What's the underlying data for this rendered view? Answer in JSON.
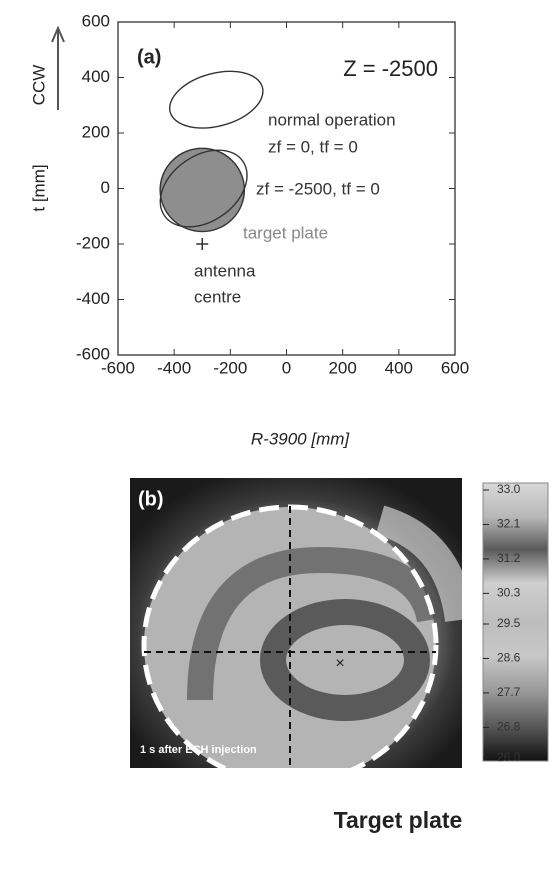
{
  "chart_data": [
    {
      "type": "ellipse",
      "panel_label": "(a)",
      "xlabel": "R-3900 [mm]",
      "ylabel": "t [mm]",
      "direction_label": "CCW",
      "xlim": [
        -600,
        600
      ],
      "ylim": [
        -600,
        600
      ],
      "xticks": [
        -600,
        -400,
        -200,
        0,
        200,
        400,
        600
      ],
      "yticks": [
        -600,
        -400,
        -200,
        0,
        200,
        400,
        600
      ],
      "color": "#333333",
      "annotations": [
        "Z = -2500",
        "normal operation",
        "zf = 0, tf = 0",
        "zf = -2500, tf = 0",
        "target plate",
        "antenna",
        "centre"
      ],
      "ellipses": [
        {
          "cx": -250,
          "cy": 320,
          "rx": 170,
          "ry": 95,
          "angle": -15,
          "fill": "none"
        },
        {
          "cx": -300,
          "cy": -5,
          "rx": 150,
          "ry": 150,
          "angle": 0,
          "fill": "#8e8e8e"
        },
        {
          "cx": -295,
          "cy": 0,
          "rx": 170,
          "ry": 118,
          "angle": -35,
          "fill": "none"
        }
      ],
      "points": [
        {
          "x": -300,
          "y": -200
        }
      ]
    },
    {
      "type": "image",
      "panel_label": "(b)",
      "caption": "1 s after ECH injection",
      "pointer_label": "Target plate",
      "clim": [
        26.0,
        33.0
      ],
      "cticks": [
        {
          "value": 33,
          "label": "33.0"
        },
        32.1,
        31.2,
        30.3,
        29.5,
        28.6,
        27.7,
        26.8,
        {
          "value": 26,
          "label": "26.0"
        }
      ]
    }
  ]
}
